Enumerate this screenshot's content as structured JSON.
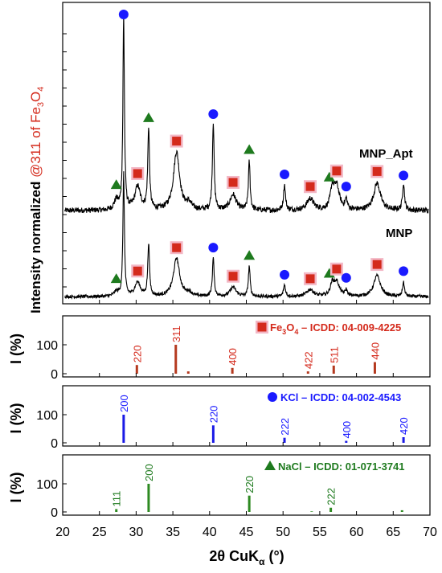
{
  "colors": {
    "fe3o4": "#d42a1c",
    "kcl": "#1a1aff",
    "nacl": "#1e7a1e",
    "fe3o4_stick": "#b5391f",
    "kcl_stick": "#1a1ae6",
    "nacl_stick": "#2e8a22",
    "marker_glow": "#f3b8c6"
  },
  "labels": {
    "y_main_a": "Intensity normalized ",
    "y_main_b": "@311 of Fe",
    "y_main_sub": "3",
    "y_main_c": "O",
    "y_main_sub2": "4",
    "y_panel": "I (%)",
    "x_a": "2θ CuK",
    "x_sub": "α",
    "x_b": " (°)",
    "mnp_apt": "MNP_Apt",
    "mnp": "MNP"
  },
  "references": [
    {
      "title_pre": "Fe",
      "title_sub": "3",
      "title_mid": "O",
      "title_sub2": "4",
      "title_post": " – ICDD: 04-009-4225",
      "symbol": "square",
      "color_key": "fe3o4"
    },
    {
      "title_pre": "KCl – ICDD: 04-002-4543",
      "symbol": "circle",
      "color_key": "kcl"
    },
    {
      "title_pre": "NaCl – ICDD: 01-071-3741",
      "symbol": "triangle",
      "color_key": "nacl"
    }
  ],
  "chart_data": {
    "type": "line",
    "x_range": [
      20,
      70
    ],
    "x_ticks": [
      "20",
      "25",
      "30",
      "35",
      "40",
      "45",
      "50",
      "55",
      "60",
      "65",
      "70"
    ],
    "series": [
      {
        "name": "MNP_Apt",
        "peaks": [
          {
            "x": 27.3,
            "h": 0.05,
            "w": 0.35
          },
          {
            "x": 28.3,
            "h": 1.0,
            "w": 0.12
          },
          {
            "x": 30.2,
            "h": 0.12,
            "w": 0.45
          },
          {
            "x": 31.7,
            "h": 0.42,
            "w": 0.14
          },
          {
            "x": 35.5,
            "h": 0.3,
            "w": 0.5
          },
          {
            "x": 37.2,
            "h": 0.03,
            "w": 0.4
          },
          {
            "x": 40.5,
            "h": 0.45,
            "w": 0.14
          },
          {
            "x": 43.2,
            "h": 0.08,
            "w": 0.5
          },
          {
            "x": 45.4,
            "h": 0.25,
            "w": 0.14
          },
          {
            "x": 50.2,
            "h": 0.13,
            "w": 0.16
          },
          {
            "x": 53.7,
            "h": 0.06,
            "w": 0.55
          },
          {
            "x": 56.7,
            "h": 0.1,
            "w": 0.3
          },
          {
            "x": 57.3,
            "h": 0.12,
            "w": 0.45
          },
          {
            "x": 58.6,
            "h": 0.05,
            "w": 0.18
          },
          {
            "x": 62.8,
            "h": 0.14,
            "w": 0.55
          },
          {
            "x": 66.4,
            "h": 0.14,
            "w": 0.16
          }
        ]
      },
      {
        "name": "MNP",
        "peaks": [
          {
            "x": 27.3,
            "h": 0.04,
            "w": 0.35
          },
          {
            "x": 28.3,
            "h": 1.05,
            "w": 0.12
          },
          {
            "x": 30.2,
            "h": 0.12,
            "w": 0.45
          },
          {
            "x": 31.7,
            "h": 0.45,
            "w": 0.14
          },
          {
            "x": 35.5,
            "h": 0.33,
            "w": 0.5
          },
          {
            "x": 37.2,
            "h": 0.03,
            "w": 0.4
          },
          {
            "x": 40.5,
            "h": 0.33,
            "w": 0.14
          },
          {
            "x": 43.2,
            "h": 0.08,
            "w": 0.5
          },
          {
            "x": 45.4,
            "h": 0.26,
            "w": 0.14
          },
          {
            "x": 50.2,
            "h": 0.1,
            "w": 0.16
          },
          {
            "x": 53.7,
            "h": 0.06,
            "w": 0.55
          },
          {
            "x": 56.7,
            "h": 0.1,
            "w": 0.3
          },
          {
            "x": 57.3,
            "h": 0.12,
            "w": 0.45
          },
          {
            "x": 58.6,
            "h": 0.05,
            "w": 0.18
          },
          {
            "x": 62.8,
            "h": 0.18,
            "w": 0.55
          },
          {
            "x": 66.4,
            "h": 0.12,
            "w": 0.16
          }
        ]
      }
    ],
    "markers": [
      {
        "series": "MNP_Apt",
        "points": [
          {
            "x": 27.3,
            "s": "triangle"
          },
          {
            "x": 28.3,
            "s": "circle"
          },
          {
            "x": 30.2,
            "s": "square"
          },
          {
            "x": 31.7,
            "s": "triangle"
          },
          {
            "x": 35.5,
            "s": "square"
          },
          {
            "x": 40.5,
            "s": "circle"
          },
          {
            "x": 43.2,
            "s": "square"
          },
          {
            "x": 45.4,
            "s": "triangle"
          },
          {
            "x": 50.2,
            "s": "circle"
          },
          {
            "x": 53.7,
            "s": "square"
          },
          {
            "x": 56.3,
            "s": "triangle"
          },
          {
            "x": 57.3,
            "s": "square"
          },
          {
            "x": 58.6,
            "s": "circle"
          },
          {
            "x": 62.8,
            "s": "square"
          },
          {
            "x": 66.4,
            "s": "circle"
          }
        ]
      },
      {
        "series": "MNP",
        "points": [
          {
            "x": 27.3,
            "s": "triangle"
          },
          {
            "x": 30.2,
            "s": "square"
          },
          {
            "x": 35.5,
            "s": "square"
          },
          {
            "x": 40.5,
            "s": "circle"
          },
          {
            "x": 43.2,
            "s": "square"
          },
          {
            "x": 45.4,
            "s": "triangle"
          },
          {
            "x": 50.2,
            "s": "circle"
          },
          {
            "x": 53.7,
            "s": "square"
          },
          {
            "x": 56.3,
            "s": "triangle"
          },
          {
            "x": 57.3,
            "s": "square"
          },
          {
            "x": 58.6,
            "s": "circle"
          },
          {
            "x": 62.8,
            "s": "square"
          },
          {
            "x": 66.4,
            "s": "circle"
          }
        ]
      }
    ],
    "reference_panels": [
      {
        "name": "Fe3O4",
        "y_ticks": [
          "0",
          "100"
        ],
        "lines": [
          {
            "x": 30.1,
            "i": 30,
            "hkl": "220"
          },
          {
            "x": 35.4,
            "i": 100,
            "hkl": "311"
          },
          {
            "x": 37.1,
            "i": 8,
            "hkl": ""
          },
          {
            "x": 43.1,
            "i": 20,
            "hkl": "400"
          },
          {
            "x": 53.4,
            "i": 8,
            "hkl": "422"
          },
          {
            "x": 56.9,
            "i": 28,
            "hkl": "511"
          },
          {
            "x": 62.5,
            "i": 40,
            "hkl": "440"
          }
        ]
      },
      {
        "name": "KCl",
        "y_ticks": [
          "0",
          "100"
        ],
        "lines": [
          {
            "x": 28.3,
            "i": 100,
            "hkl": "200"
          },
          {
            "x": 40.5,
            "i": 62,
            "hkl": "220"
          },
          {
            "x": 50.2,
            "i": 18,
            "hkl": "222"
          },
          {
            "x": 58.6,
            "i": 7,
            "hkl": "400"
          },
          {
            "x": 66.4,
            "i": 20,
            "hkl": "420"
          }
        ]
      },
      {
        "name": "NaCl",
        "y_ticks": [
          "0",
          "100"
        ],
        "lines": [
          {
            "x": 27.3,
            "i": 10,
            "hkl": "111"
          },
          {
            "x": 31.7,
            "i": 100,
            "hkl": "200"
          },
          {
            "x": 45.4,
            "i": 58,
            "hkl": "220"
          },
          {
            "x": 53.9,
            "i": 2,
            "hkl": ""
          },
          {
            "x": 56.5,
            "i": 15,
            "hkl": "222"
          },
          {
            "x": 66.2,
            "i": 6,
            "hkl": ""
          }
        ]
      }
    ]
  }
}
